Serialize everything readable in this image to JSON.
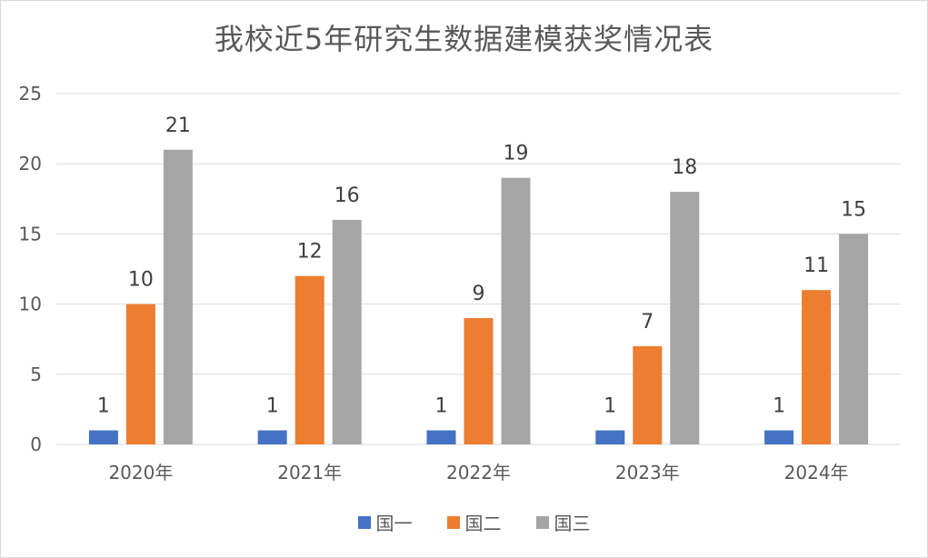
{
  "chart_data": {
    "type": "bar",
    "title": "我校近5年研究生数据建模获奖情况表",
    "categories": [
      "2020年",
      "2021年",
      "2022年",
      "2023年",
      "2024年"
    ],
    "series": [
      {
        "name": "国一",
        "values": [
          1,
          1,
          1,
          1,
          1
        ],
        "color": "#4472C4"
      },
      {
        "name": "国二",
        "values": [
          10,
          12,
          9,
          7,
          11
        ],
        "color": "#ED7D31"
      },
      {
        "name": "国三",
        "values": [
          21,
          16,
          19,
          18,
          15
        ],
        "color": "#A5A5A5"
      }
    ],
    "ylim": [
      0,
      25
    ],
    "yticks": [
      0,
      5,
      10,
      15,
      20,
      25
    ],
    "xlabel": "",
    "ylabel": "",
    "grid": true,
    "legend_position": "bottom",
    "data_labels": true
  }
}
